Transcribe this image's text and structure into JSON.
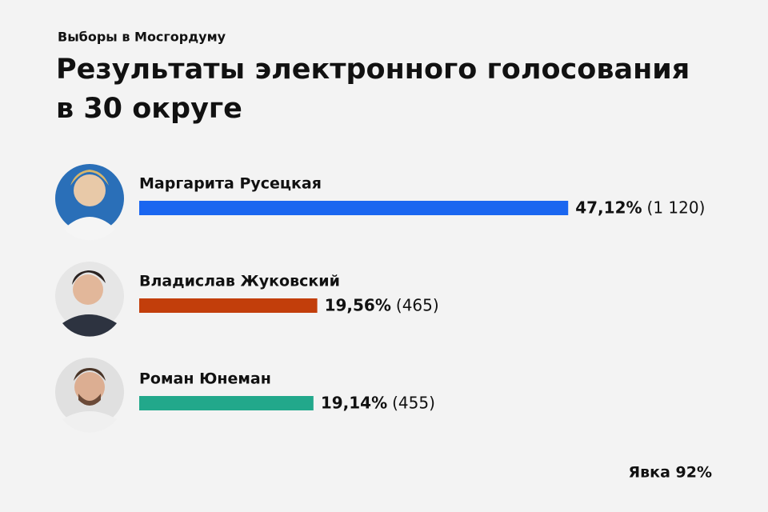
{
  "chart_data": {
    "type": "bar",
    "orientation": "horizontal",
    "subtitle": "Выборы в Мосгордуму",
    "title": "Результаты электронного голосования в 30 округе",
    "categories": [
      "Маргарита Русецкая",
      "Владислав Жуковский",
      "Роман Юнеман"
    ],
    "values": [
      47.12,
      19.56,
      19.14
    ],
    "value_labels": [
      "47,12%",
      "19,56%",
      "19,14%"
    ],
    "counts": [
      1120,
      465,
      455
    ],
    "count_labels": [
      "(1 120)",
      "(465)",
      "(455)"
    ],
    "colors": [
      "#1a66f0",
      "#c23e0b",
      "#22a88b"
    ],
    "annotation": "Явка 92%"
  }
}
